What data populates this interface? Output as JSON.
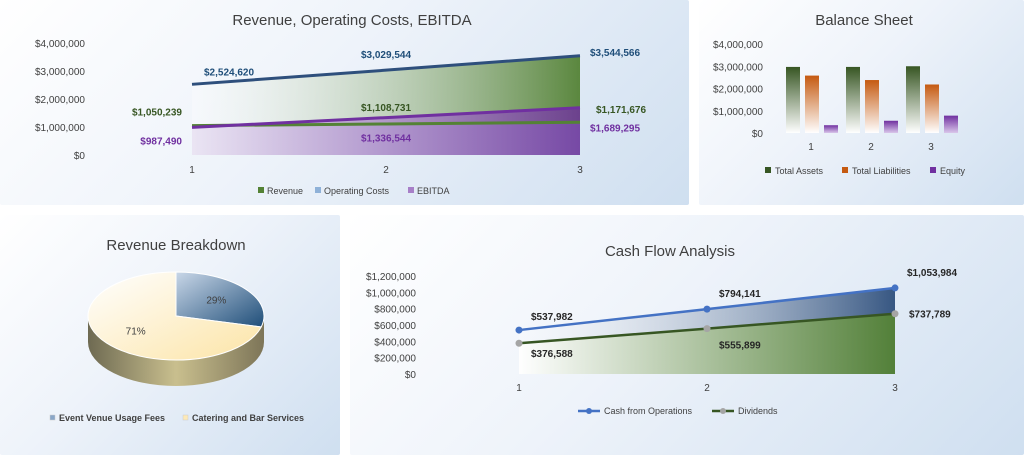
{
  "colors": {
    "revenue": "#548235",
    "operating_costs": "#2e4f7c",
    "ebitda": "#7030a0",
    "ebitda_label": "#7030a0",
    "revenue_label": "#375623",
    "costs_label": "#1f4e79",
    "assets": "#375623",
    "liabilities": "#c55a11",
    "equity": "#7030a0",
    "pie_venue": "#1f4e79",
    "pie_catering": "#fde9b7",
    "cash_ops": "#4472c4",
    "dividends": "#375623",
    "text": "#404040"
  },
  "chart_data": [
    {
      "id": "revenue_chart",
      "type": "area",
      "title": "Revenue, Operating Costs, EBITDA",
      "xlabel": "",
      "ylabel": "",
      "x": [
        1,
        2,
        3
      ],
      "ylim": [
        0,
        4000000
      ],
      "yticks": [
        "$0",
        "$1,000,000",
        "$2,000,000",
        "$3,000,000",
        "$4,000,000"
      ],
      "xticks": [
        "1",
        "2",
        "3"
      ],
      "series": [
        {
          "name": "Revenue",
          "values": [
            2524620,
            3029544,
            3544566
          ],
          "labels": [
            "$2,524,620",
            "$3,029,544",
            "$3,544,566"
          ]
        },
        {
          "name": "Operating Costs",
          "values": [
            1050239,
            1108731,
            1171676
          ],
          "labels": [
            "$1,050,239",
            "$1,108,731",
            "$1,171,676"
          ]
        },
        {
          "name": "EBITDA",
          "values": [
            987490,
            1336544,
            1689295
          ],
          "labels": [
            "$987,490",
            "$1,336,544",
            "$1,689,295"
          ]
        }
      ],
      "legend": "bottom",
      "grid": false
    },
    {
      "id": "balance_chart",
      "type": "bar",
      "title": "Balance Sheet",
      "categories": [
        "1",
        "2",
        "3"
      ],
      "ylim": [
        0,
        4000000
      ],
      "yticks": [
        "$0",
        "$1,000,000",
        "$2,000,000",
        "$3,000,000",
        "$4,000,000"
      ],
      "series": [
        {
          "name": "Total Assets",
          "values": [
            2970000,
            2970000,
            3000000
          ]
        },
        {
          "name": "Total Liabilities",
          "values": [
            2580000,
            2380000,
            2180000
          ]
        },
        {
          "name": "Equity",
          "values": [
            350000,
            550000,
            780000
          ]
        }
      ],
      "legend": "bottom",
      "grid": false
    },
    {
      "id": "pie_chart",
      "type": "pie",
      "title": "Revenue Breakdown",
      "series": [
        {
          "name": "Event Venue Usage Fees",
          "value": 29,
          "label": "29%"
        },
        {
          "name": "Catering and Bar Services",
          "value": 71,
          "label": "71%"
        }
      ],
      "legend": "bottom"
    },
    {
      "id": "cashflow_chart",
      "type": "line",
      "title": "Cash Flow Analysis",
      "x": [
        1,
        2,
        3
      ],
      "xticks": [
        "1",
        "2",
        "3"
      ],
      "ylim": [
        0,
        1200000
      ],
      "yticks": [
        "$0",
        "$200,000",
        "$400,000",
        "$600,000",
        "$800,000",
        "$1,000,000",
        "$1,200,000"
      ],
      "series": [
        {
          "name": "Cash from Operations",
          "values": [
            537982,
            794141,
            1053984
          ],
          "labels": [
            "$537,982",
            "$794,141",
            "$1,053,984"
          ]
        },
        {
          "name": "Dividends",
          "values": [
            376588,
            555899,
            737789
          ],
          "labels": [
            "$376,588",
            "$555,899",
            "$737,789"
          ]
        }
      ],
      "legend": "bottom",
      "grid": false
    }
  ]
}
